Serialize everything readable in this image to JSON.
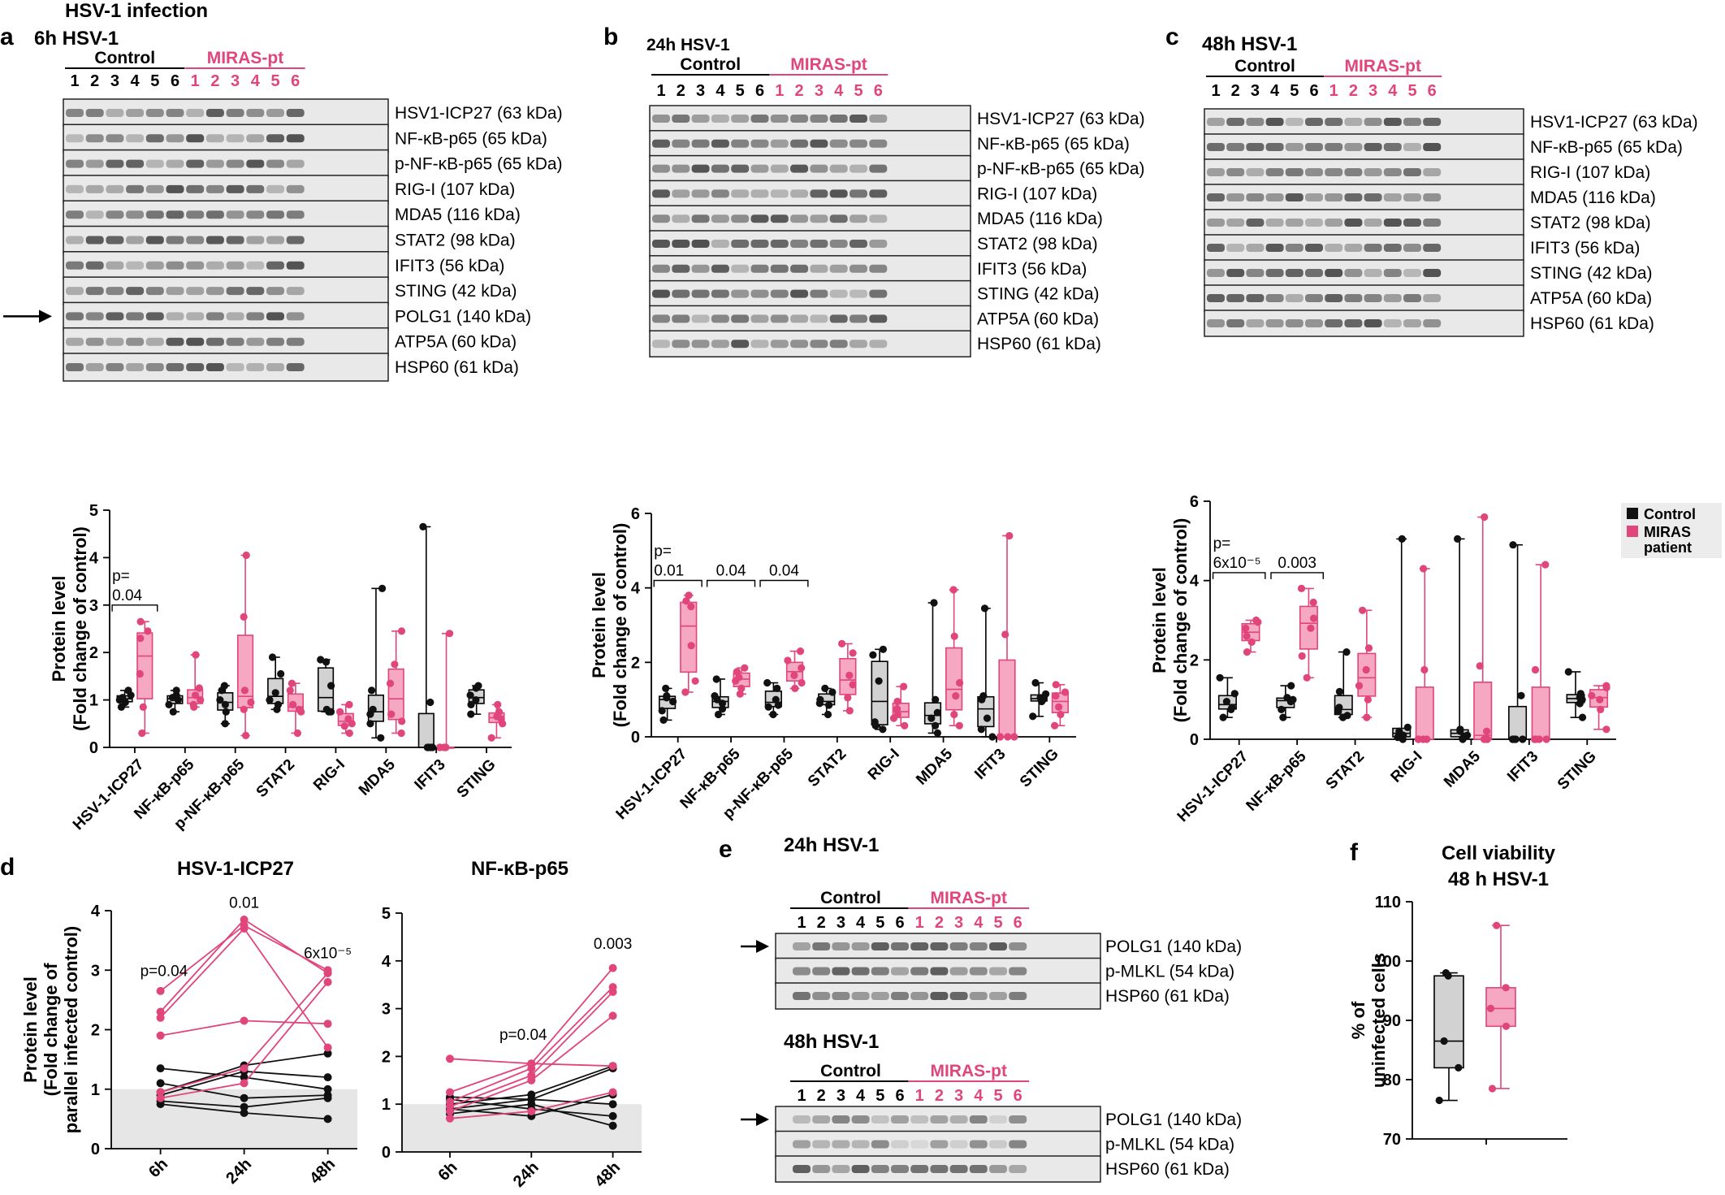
{
  "figure_title": "HSV-1 infection",
  "colors": {
    "control": "#111111",
    "patient": "#e0457b",
    "control_fill": "#d2d2d2",
    "patient_fill": "#f6a7c1",
    "shade": "#e6e6e6",
    "blot": "#2a2a2a"
  },
  "blot_panels": [
    {
      "letter": "a",
      "title": "6h HSV-1",
      "control_label": "Control",
      "patient_label": "MIRAS-pt",
      "lanes": [
        "1",
        "2",
        "3",
        "4",
        "5",
        "6"
      ],
      "arrow_on": "POLG1 (140 kDa)",
      "bands": [
        "HSV1-ICP27 (63 kDa)",
        "NF-κB-p65 (65 kDa)",
        "p-NF-κB-p65 (65 kDa)",
        "RIG-I (107 kDa)",
        "MDA5 (116 kDa)",
        "STAT2 (98 kDa)",
        "IFIT3 (56 kDa)",
        "STING (42 kDa)",
        "POLG1 (140 kDa)",
        "ATP5A (60 kDa)",
        "HSP60 (61 kDa)"
      ]
    },
    {
      "letter": "b",
      "title": "24h HSV-1",
      "control_label": "Control",
      "patient_label": "MIRAS-pt",
      "lanes": [
        "1",
        "2",
        "3",
        "4",
        "5",
        "6"
      ],
      "arrow_on": "",
      "bands": [
        "HSV1-ICP27 (63 kDa)",
        "NF-κB-p65 (65 kDa)",
        "p-NF-κB-p65 (65 kDa)",
        "RIG-I (107 kDa)",
        "MDA5 (116 kDa)",
        "STAT2 (98 kDa)",
        "IFIT3 (56 kDa)",
        "STING (42 kDa)",
        "ATP5A (60 kDa)",
        "HSP60 (61 kDa)"
      ]
    },
    {
      "letter": "c",
      "title": "48h HSV-1",
      "control_label": "Control",
      "patient_label": "MIRAS-pt",
      "lanes": [
        "1",
        "2",
        "3",
        "4",
        "5",
        "6"
      ],
      "arrow_on": "",
      "bands": [
        "HSV1-ICP27 (63 kDa)",
        "NF-κB-p65 (65 kDa)",
        "RIG-I (107 kDa)",
        "MDA5 (116 kDa)",
        "STAT2 (98 kDa)",
        "IFIT3 (56 kDa)",
        "STING (42 kDa)",
        "ATP5A (60 kDa)",
        "HSP60 (61 kDa)"
      ]
    }
  ],
  "legend": {
    "control": "Control",
    "patient": "MIRAS patient"
  },
  "panel_e": {
    "letter": "e",
    "lanes": [
      "1",
      "2",
      "3",
      "4",
      "5",
      "6"
    ],
    "control_label": "Control",
    "patient_label": "MIRAS-pt",
    "blocks": [
      {
        "title": "24h HSV-1",
        "bands": [
          "POLG1 (140 kDa)",
          "p-MLKL (54 kDa)",
          "HSP60 (61 kDa)"
        ]
      },
      {
        "title": "48h HSV-1",
        "bands": [
          "POLG1 (140 kDa)",
          "p-MLKL (54 kDa)",
          "HSP60 (61 kDa)"
        ]
      }
    ]
  },
  "chart_data": [
    {
      "panel": "a",
      "type": "box",
      "ylabel": "Protein level",
      "ylabel2": "(Fold change of control)",
      "ylim": [
        0,
        5
      ],
      "yticks": [
        "0",
        "1",
        "2",
        "3",
        "4",
        "5"
      ],
      "categories": [
        "HSV-1-ICP27",
        "NF-κB-p65",
        "p-NF-κB-p65",
        "STAT2",
        "RIG-I",
        "MDA5",
        "IFIT3",
        "STING"
      ],
      "control": [
        [
          0.85,
          0.95,
          1.05,
          1.1,
          1.2,
          1.0
        ],
        [
          0.75,
          0.9,
          1.0,
          1.1,
          1.2,
          1.05
        ],
        [
          0.5,
          0.75,
          1.0,
          1.2,
          1.3,
          0.9
        ],
        [
          0.8,
          1.0,
          1.15,
          1.55,
          1.9,
          0.9
        ],
        [
          0.75,
          0.8,
          1.3,
          1.8,
          1.85,
          0.75
        ],
        [
          0.2,
          0.5,
          0.8,
          1.2,
          3.35,
          0.7
        ],
        [
          0.0,
          0.0,
          0.0,
          0.0,
          0.95,
          4.65
        ],
        [
          0.7,
          0.9,
          1.1,
          1.25,
          1.3,
          1.0
        ]
      ],
      "patient": [
        [
          0.3,
          0.85,
          1.55,
          2.3,
          2.45,
          2.65
        ],
        [
          0.85,
          1.0,
          1.1,
          1.25,
          1.95,
          0.9
        ],
        [
          0.25,
          0.8,
          0.95,
          1.2,
          2.75,
          4.05
        ],
        [
          0.3,
          0.75,
          0.9,
          1.2,
          1.35,
          0.8
        ],
        [
          0.3,
          0.45,
          0.6,
          0.9,
          0.75,
          0.5
        ],
        [
          0.3,
          0.55,
          1.35,
          1.75,
          2.45,
          0.7
        ],
        [
          0.0,
          0.0,
          0.0,
          0.0,
          2.4,
          0.0
        ],
        [
          0.2,
          0.5,
          0.6,
          0.75,
          0.9,
          0.65
        ]
      ],
      "comparisons": [
        {
          "index": 0,
          "label": "p=",
          "label2": "0.04"
        }
      ]
    },
    {
      "panel": "b",
      "type": "box",
      "ylabel": "Protein level",
      "ylabel2": "(Fold change of control)",
      "ylim": [
        0,
        6
      ],
      "yticks": [
        "0",
        "2",
        "4",
        "6"
      ],
      "categories": [
        "HSV-1-ICP27",
        "NF-κB-p65",
        "p-NF-κB-p65",
        "STAT2",
        "RIG-I",
        "MDA5",
        "IFIT3",
        "STING"
      ],
      "control": [
        [
          0.45,
          0.7,
          0.95,
          1.1,
          1.3,
          1.05
        ],
        [
          0.6,
          0.75,
          1.0,
          1.1,
          1.55,
          0.9
        ],
        [
          0.6,
          0.8,
          1.0,
          1.3,
          1.45,
          0.85
        ],
        [
          0.6,
          0.85,
          1.0,
          1.3,
          1.2,
          0.9
        ],
        [
          0.2,
          0.4,
          1.5,
          2.2,
          2.35,
          0.3
        ],
        [
          0.1,
          0.3,
          0.65,
          1.0,
          3.6,
          0.5
        ],
        [
          0.0,
          0.2,
          1.0,
          1.1,
          3.45,
          0.5
        ],
        [
          0.55,
          0.95,
          1.05,
          1.15,
          1.45,
          1.0
        ]
      ],
      "patient": [
        [
          1.2,
          1.5,
          2.45,
          3.5,
          3.65,
          3.8
        ],
        [
          1.15,
          1.3,
          1.5,
          1.6,
          1.75,
          1.85
        ],
        [
          1.3,
          1.45,
          1.65,
          1.85,
          2.05,
          2.3
        ],
        [
          0.7,
          1.05,
          1.4,
          1.65,
          2.25,
          2.5
        ],
        [
          0.3,
          0.5,
          0.75,
          0.95,
          1.35,
          0.6
        ],
        [
          0.3,
          0.6,
          1.1,
          1.45,
          2.7,
          3.95
        ],
        [
          0.0,
          0.0,
          0.0,
          0.0,
          2.75,
          5.4
        ],
        [
          0.3,
          0.6,
          0.8,
          1.1,
          1.4,
          1.2
        ]
      ],
      "comparisons": [
        {
          "index": 0,
          "label": "p=",
          "label2": "0.01"
        },
        {
          "index": 1,
          "label": "",
          "label2": "0.04"
        },
        {
          "index": 2,
          "label": "",
          "label2": "0.04"
        }
      ]
    },
    {
      "panel": "c",
      "type": "box",
      "ylabel": "Protein level",
      "ylabel2": "(Fold change of control)",
      "ylim": [
        0,
        6
      ],
      "yticks": [
        "0",
        "2",
        "4",
        "6"
      ],
      "categories": [
        "HSV-1-ICP27",
        "NF-κB-p65",
        "STAT2",
        "RIG-I",
        "MDA5",
        "IFIT3",
        "STING"
      ],
      "control": [
        [
          0.55,
          0.75,
          0.95,
          1.15,
          1.55,
          0.8
        ],
        [
          0.55,
          0.75,
          0.95,
          1.05,
          1.35,
          1.0
        ],
        [
          0.55,
          0.6,
          0.8,
          1.2,
          2.2,
          0.7
        ],
        [
          0.0,
          0.05,
          0.1,
          0.3,
          5.05,
          0.2
        ],
        [
          0.0,
          0.05,
          0.1,
          0.25,
          5.05,
          0.2
        ],
        [
          0.0,
          0.0,
          0.0,
          0.0,
          4.9,
          1.1
        ],
        [
          0.55,
          0.9,
          1.05,
          1.15,
          1.7,
          1.0
        ]
      ],
      "patient": [
        [
          2.2,
          2.45,
          2.6,
          2.8,
          2.95,
          3.0
        ],
        [
          1.55,
          2.1,
          2.8,
          3.05,
          3.45,
          3.8
        ],
        [
          0.55,
          1.0,
          1.35,
          1.75,
          2.3,
          3.25
        ],
        [
          0.0,
          0.0,
          0.0,
          0.0,
          1.75,
          4.3
        ],
        [
          0.0,
          0.0,
          0.0,
          0.2,
          1.85,
          5.6
        ],
        [
          0.0,
          0.0,
          0.0,
          0.0,
          1.75,
          4.4
        ],
        [
          0.25,
          0.75,
          1.0,
          1.1,
          1.3,
          1.35
        ]
      ],
      "comparisons": [
        {
          "index": 0,
          "label": "p=",
          "label2": "6x10⁻⁵"
        },
        {
          "index": 1,
          "label": "",
          "label2": "0.003"
        }
      ]
    },
    {
      "panel": "d",
      "type": "paired_line",
      "title": "HSV-1-ICP27",
      "ylabel": "Protein level",
      "ylabel2": "(Fold change of",
      "ylabel3": "parallel infected control)",
      "x": [
        "6h",
        "24h",
        "48h"
      ],
      "ylim": [
        0,
        4
      ],
      "yticks": [
        "0",
        "1",
        "2",
        "3",
        "4"
      ],
      "control": [
        [
          0.95,
          1.4,
          1.6
        ],
        [
          0.9,
          1.3,
          1.2
        ],
        [
          1.1,
          0.85,
          0.9
        ],
        [
          0.8,
          0.7,
          0.85
        ],
        [
          0.75,
          0.6,
          0.5
        ],
        [
          1.35,
          1.2,
          1.0
        ]
      ],
      "patient": [
        [
          2.65,
          3.75,
          3.0
        ],
        [
          2.3,
          3.85,
          2.95
        ],
        [
          2.2,
          3.7,
          1.7
        ],
        [
          1.9,
          2.15,
          2.1
        ],
        [
          0.95,
          1.35,
          2.95
        ],
        [
          0.85,
          1.1,
          2.8
        ]
      ],
      "annotations": [
        "p=0.04",
        "0.01",
        "6x10⁻⁵"
      ]
    },
    {
      "panel": "d2",
      "type": "paired_line",
      "title": "NF-κB-p65",
      "x": [
        "6h",
        "24h",
        "48h"
      ],
      "ylim": [
        0,
        5
      ],
      "yticks": [
        "0",
        "1",
        "2",
        "3",
        "4",
        "5"
      ],
      "control": [
        [
          1.0,
          1.2,
          1.8
        ],
        [
          0.9,
          1.1,
          1.0
        ],
        [
          1.1,
          0.9,
          0.75
        ],
        [
          0.8,
          1.0,
          0.55
        ],
        [
          0.9,
          0.75,
          1.2
        ],
        [
          1.15,
          1.1,
          1.75
        ]
      ],
      "patient": [
        [
          1.95,
          1.85,
          3.85
        ],
        [
          1.05,
          1.75,
          3.45
        ],
        [
          0.95,
          1.6,
          3.35
        ],
        [
          0.85,
          1.5,
          2.85
        ],
        [
          1.25,
          1.85,
          1.8
        ],
        [
          0.7,
          0.85,
          1.25
        ]
      ],
      "annotations": [
        "p=0.04",
        "0.003"
      ]
    },
    {
      "panel": "f",
      "type": "box",
      "title": "Cell viability",
      "title2": "48 h HSV-1",
      "ylabel": "% of",
      "ylabel2": "uninfected cells",
      "ylim": [
        70,
        110
      ],
      "yticks": [
        "70",
        "80",
        "90",
        "100",
        "110"
      ],
      "control": [
        76.5,
        82,
        86.5,
        97.5,
        98
      ],
      "patient": [
        78.5,
        89,
        92,
        95.5,
        106
      ]
    }
  ]
}
